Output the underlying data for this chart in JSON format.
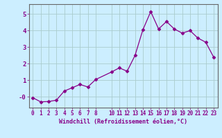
{
  "x": [
    0,
    1,
    2,
    3,
    4,
    5,
    6,
    7,
    8,
    10,
    11,
    12,
    13,
    14,
    15,
    16,
    17,
    18,
    19,
    20,
    21,
    22,
    23
  ],
  "y": [
    -0.05,
    -0.3,
    -0.28,
    -0.2,
    0.35,
    0.55,
    0.75,
    0.6,
    1.05,
    1.5,
    1.75,
    1.55,
    2.5,
    4.05,
    5.15,
    4.1,
    4.55,
    4.1,
    3.85,
    4.0,
    3.55,
    3.3,
    2.4
  ],
  "line_color": "#880088",
  "marker": "D",
  "marker_size": 2.5,
  "bg_color": "#cceeff",
  "grid_color": "#aacccc",
  "xlabel": "Windchill (Refroidissement éolien,°C)",
  "ylabel_ticks": [
    "-0",
    "1",
    "2",
    "3",
    "4",
    "5"
  ],
  "yticks": [
    0.0,
    1.0,
    2.0,
    3.0,
    4.0,
    5.0
  ],
  "ylim": [
    -0.65,
    5.6
  ],
  "xlim": [
    -0.5,
    23.5
  ],
  "xticks": [
    0,
    1,
    2,
    3,
    4,
    5,
    6,
    7,
    8,
    10,
    11,
    12,
    13,
    14,
    15,
    16,
    17,
    18,
    19,
    20,
    21,
    22,
    23
  ],
  "tick_fontsize": 5.5,
  "xlabel_fontsize": 6.0,
  "ylabel_fontsize": 6.5
}
